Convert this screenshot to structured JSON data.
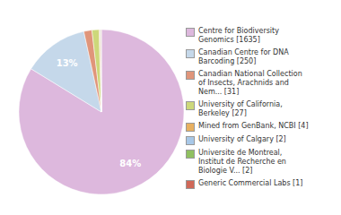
{
  "chart_data": {
    "type": "pie",
    "labels": [
      "Centre for Biodiversity\nGenomics [1635]",
      "Canadian Centre for DNA\nBarcoding [250]",
      "Canadian National Collection\nof Insects, Arachnids and\nNem... [31]",
      "University of California,\nBerkeley [27]",
      "Mined from GenBank, NCBI [4]",
      "University of Calgary [2]",
      "Universite de Montreal,\nInstitut de Recherche en\nBiologie V... [2]",
      "Generic Commercial Labs [1]"
    ],
    "values": [
      83.76,
      12.81,
      1.59,
      1.38,
      0.2,
      0.1,
      0.1,
      0.05
    ],
    "value_labels": [
      "84%",
      "13%",
      null,
      null,
      null,
      null,
      null,
      null
    ],
    "data_labels": true,
    "colors": [
      "#ddb8dd",
      "#c5d8ea",
      "#e0957a",
      "#cdd87a",
      "#e8b060",
      "#a8c8e8",
      "#90c060",
      "#d06858"
    ],
    "legend": "right"
  }
}
